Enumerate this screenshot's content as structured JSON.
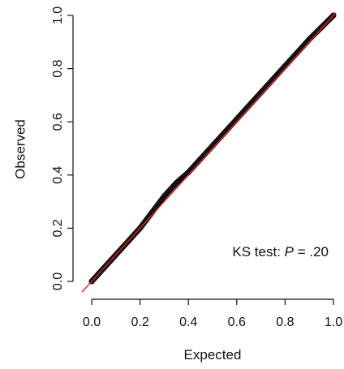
{
  "chart_data": {
    "type": "scatter",
    "title": "",
    "xlabel": "Expected",
    "ylabel": "Observed",
    "xlim": [
      0,
      1
    ],
    "ylim": [
      0,
      1
    ],
    "x_ticks": [
      "0.0",
      "0.2",
      "0.4",
      "0.6",
      "0.8",
      "1.0"
    ],
    "y_ticks": [
      "0.0",
      "0.2",
      "0.4",
      "0.6",
      "0.8",
      "1.0"
    ],
    "grid": false,
    "series": [
      {
        "color": "#111111",
        "x": [
          0.0,
          0.05,
          0.1,
          0.15,
          0.2,
          0.25,
          0.3,
          0.35,
          0.4,
          0.45,
          0.5,
          0.55,
          0.6,
          0.65,
          0.7,
          0.75,
          0.8,
          0.85,
          0.9,
          0.95,
          1.0
        ],
        "y": [
          0.0,
          0.05,
          0.1,
          0.15,
          0.2,
          0.26,
          0.32,
          0.37,
          0.41,
          0.46,
          0.51,
          0.56,
          0.61,
          0.66,
          0.71,
          0.76,
          0.81,
          0.86,
          0.91,
          0.955,
          1.0
        ]
      }
    ],
    "reference_line": {
      "color": "#e8201a",
      "slope": 1,
      "intercept": 0
    },
    "annotation": {
      "prefix": "KS test: ",
      "var": "P",
      "suffix": " = .20"
    }
  }
}
